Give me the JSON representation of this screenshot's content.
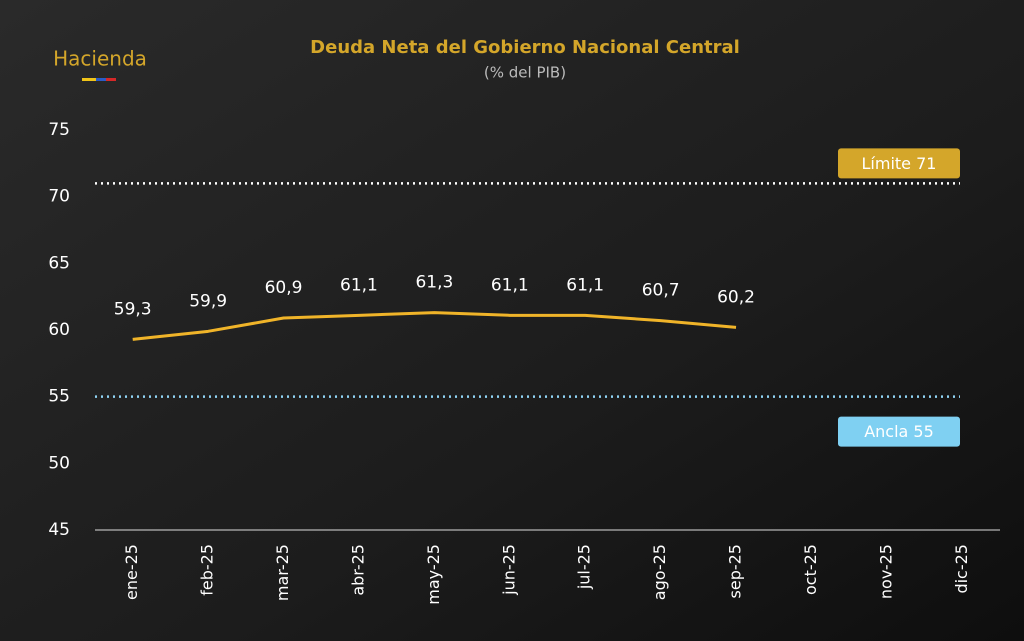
{
  "brand": "Hacienda",
  "chart_data": {
    "type": "line",
    "title": "Deuda Neta del Gobierno Nacional Central",
    "subtitle": "(% del PIB)",
    "categories": [
      "ene-25",
      "feb-25",
      "mar-25",
      "abr-25",
      "may-25",
      "jun-25",
      "jul-25",
      "ago-25",
      "sep-25",
      "oct-25",
      "nov-25",
      "dic-25"
    ],
    "series": [
      {
        "name": "Deuda Neta",
        "color": "#f0b429",
        "values": [
          59.3,
          59.9,
          60.9,
          61.1,
          61.3,
          61.1,
          61.1,
          60.7,
          60.2,
          null,
          null,
          null
        ],
        "value_labels": [
          "59,3",
          "59,9",
          "60,9",
          "61,1",
          "61,3",
          "61,1",
          "61,1",
          "60,7",
          "60,2",
          null,
          null,
          null
        ]
      }
    ],
    "ylim": [
      45,
      75
    ],
    "yticks": [
      45,
      50,
      55,
      60,
      65,
      70,
      75
    ],
    "reference_lines": [
      {
        "label": "Límite 71",
        "value": 71,
        "color": "#ffffff",
        "box_color": "#d4a62a"
      },
      {
        "label": "Ancla 55",
        "value": 55,
        "color": "#8fd3f4",
        "box_color": "#7fd0f2"
      }
    ]
  }
}
